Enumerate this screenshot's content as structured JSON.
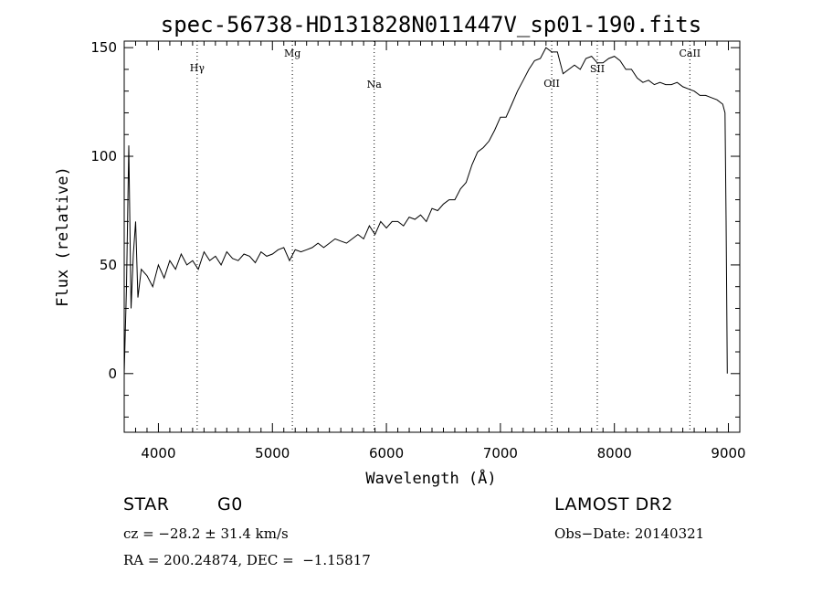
{
  "chart_data": {
    "type": "line",
    "title": "spec-56738-HD131828N011447V_sp01-190.fits",
    "xlabel": "Wavelength (Å)",
    "ylabel": "Flux (relative)",
    "xlim": [
      3700,
      9100
    ],
    "ylim": [
      -27,
      153
    ],
    "x_ticks": [
      4000,
      5000,
      6000,
      7000,
      8000,
      9000
    ],
    "y_ticks": [
      0,
      50,
      100,
      150
    ],
    "grid": false,
    "spectral_lines": [
      {
        "name": "Hγ",
        "wavelength": 4340
      },
      {
        "name": "Mg",
        "wavelength": 5175
      },
      {
        "name": "Na",
        "wavelength": 5893
      },
      {
        "name": "OII",
        "wavelength": 7450
      },
      {
        "name": "SII",
        "wavelength": 7850
      },
      {
        "name": "CaII",
        "wavelength": 8662
      }
    ],
    "series": [
      {
        "x": [
          3700,
          3720,
          3740,
          3760,
          3780,
          3800,
          3820,
          3850,
          3900,
          3950,
          4000,
          4050,
          4100,
          4150,
          4200,
          4250,
          4300,
          4350,
          4400,
          4450,
          4500,
          4550,
          4600,
          4650,
          4700,
          4750,
          4800,
          4850,
          4900,
          4950,
          5000,
          5050,
          5100,
          5150,
          5200,
          5250,
          5300,
          5350,
          5400,
          5450,
          5500,
          5550,
          5600,
          5650,
          5700,
          5750,
          5800,
          5850,
          5900,
          5950,
          6000,
          6050,
          6100,
          6150,
          6200,
          6250,
          6300,
          6350,
          6400,
          6450,
          6500,
          6550,
          6600,
          6650,
          6700,
          6750,
          6800,
          6850,
          6900,
          6950,
          7000,
          7050,
          7100,
          7150,
          7200,
          7250,
          7300,
          7350,
          7400,
          7450,
          7500,
          7550,
          7600,
          7650,
          7700,
          7750,
          7800,
          7850,
          7900,
          7950,
          8000,
          8050,
          8100,
          8150,
          8200,
          8250,
          8300,
          8350,
          8400,
          8450,
          8500,
          8550,
          8600,
          8650,
          8700,
          8750,
          8800,
          8850,
          8900,
          8950,
          8970,
          8980,
          8990
        ],
        "y": [
          0,
          40,
          105,
          30,
          55,
          70,
          35,
          48,
          45,
          40,
          50,
          44,
          52,
          48,
          55,
          50,
          52,
          48,
          56,
          52,
          54,
          50,
          56,
          53,
          52,
          55,
          54,
          51,
          56,
          54,
          55,
          57,
          58,
          52,
          57,
          56,
          57,
          58,
          60,
          58,
          60,
          62,
          61,
          60,
          62,
          64,
          62,
          68,
          64,
          70,
          67,
          70,
          70,
          68,
          72,
          71,
          73,
          70,
          76,
          75,
          78,
          80,
          80,
          85,
          88,
          96,
          102,
          104,
          107,
          112,
          118,
          118,
          124,
          130,
          135,
          140,
          144,
          145,
          150,
          148,
          148,
          138,
          140,
          142,
          140,
          145,
          146,
          143,
          143,
          145,
          146,
          144,
          140,
          140,
          136,
          134,
          135,
          133,
          134,
          133,
          133,
          134,
          132,
          131,
          130,
          128,
          128,
          127,
          126,
          124,
          120,
          70,
          0
        ]
      }
    ]
  },
  "footer": {
    "object_type": "STAR",
    "subclass": "G0",
    "survey": "LAMOST DR2",
    "cz": "cz = −28.2 ± 31.4 km/s",
    "obs_date": "Obs−Date: 20140321",
    "radec": "RA = 200.24874, DEC =  −1.15817"
  }
}
